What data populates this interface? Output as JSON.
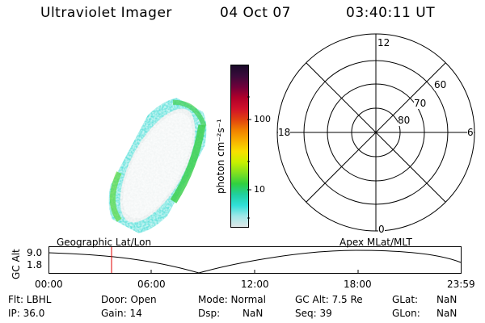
{
  "header": {
    "instrument": "Ultraviolet Imager",
    "date": "04 Oct 07",
    "time": "03:40:11 UT"
  },
  "colorbar": {
    "unit_label": "photon cm⁻²s⁻¹",
    "ticks": [
      "100",
      "10"
    ],
    "colors": [
      "#1a0a2a",
      "#3a0a3a",
      "#70003a",
      "#b0002a",
      "#d0102a",
      "#e04010",
      "#f08000",
      "#f8b000",
      "#f8e000",
      "#c8f000",
      "#80e020",
      "#30d040",
      "#20d0a0",
      "#30e0d8",
      "#a0e8e8",
      "#e0e8e8"
    ]
  },
  "polar_plot": {
    "mlt_labels": {
      "top": "12",
      "left": "18",
      "right": "6",
      "bottom": "0"
    },
    "lat_labels": [
      "60",
      "70",
      "80"
    ]
  },
  "timeline": {
    "y_axis_label": "GC Alt",
    "y_ticks": [
      "9.0",
      "1.8"
    ],
    "left_caption": "Geographic Lat/Lon",
    "right_caption": "Apex MLat/MLT",
    "x_ticks": [
      "00:00",
      "06:00",
      "12:00",
      "18:00",
      "23:59"
    ],
    "marker_color": "#e00000"
  },
  "info": {
    "row1": {
      "flt": "Flt: LBHL",
      "door": "Door: Open",
      "mode": "Mode: Normal",
      "gcalt": "GC Alt: 7.5 Re",
      "glat_label": "GLat:",
      "glat_value": "NaN"
    },
    "row2": {
      "ip": "IP: 36.0",
      "gain": "Gain: 14",
      "dsp": "Dsp:",
      "dsp_value": "NaN",
      "seq": "Seq: 39",
      "glon_label": "GLon:",
      "glon_value": "NaN"
    }
  }
}
